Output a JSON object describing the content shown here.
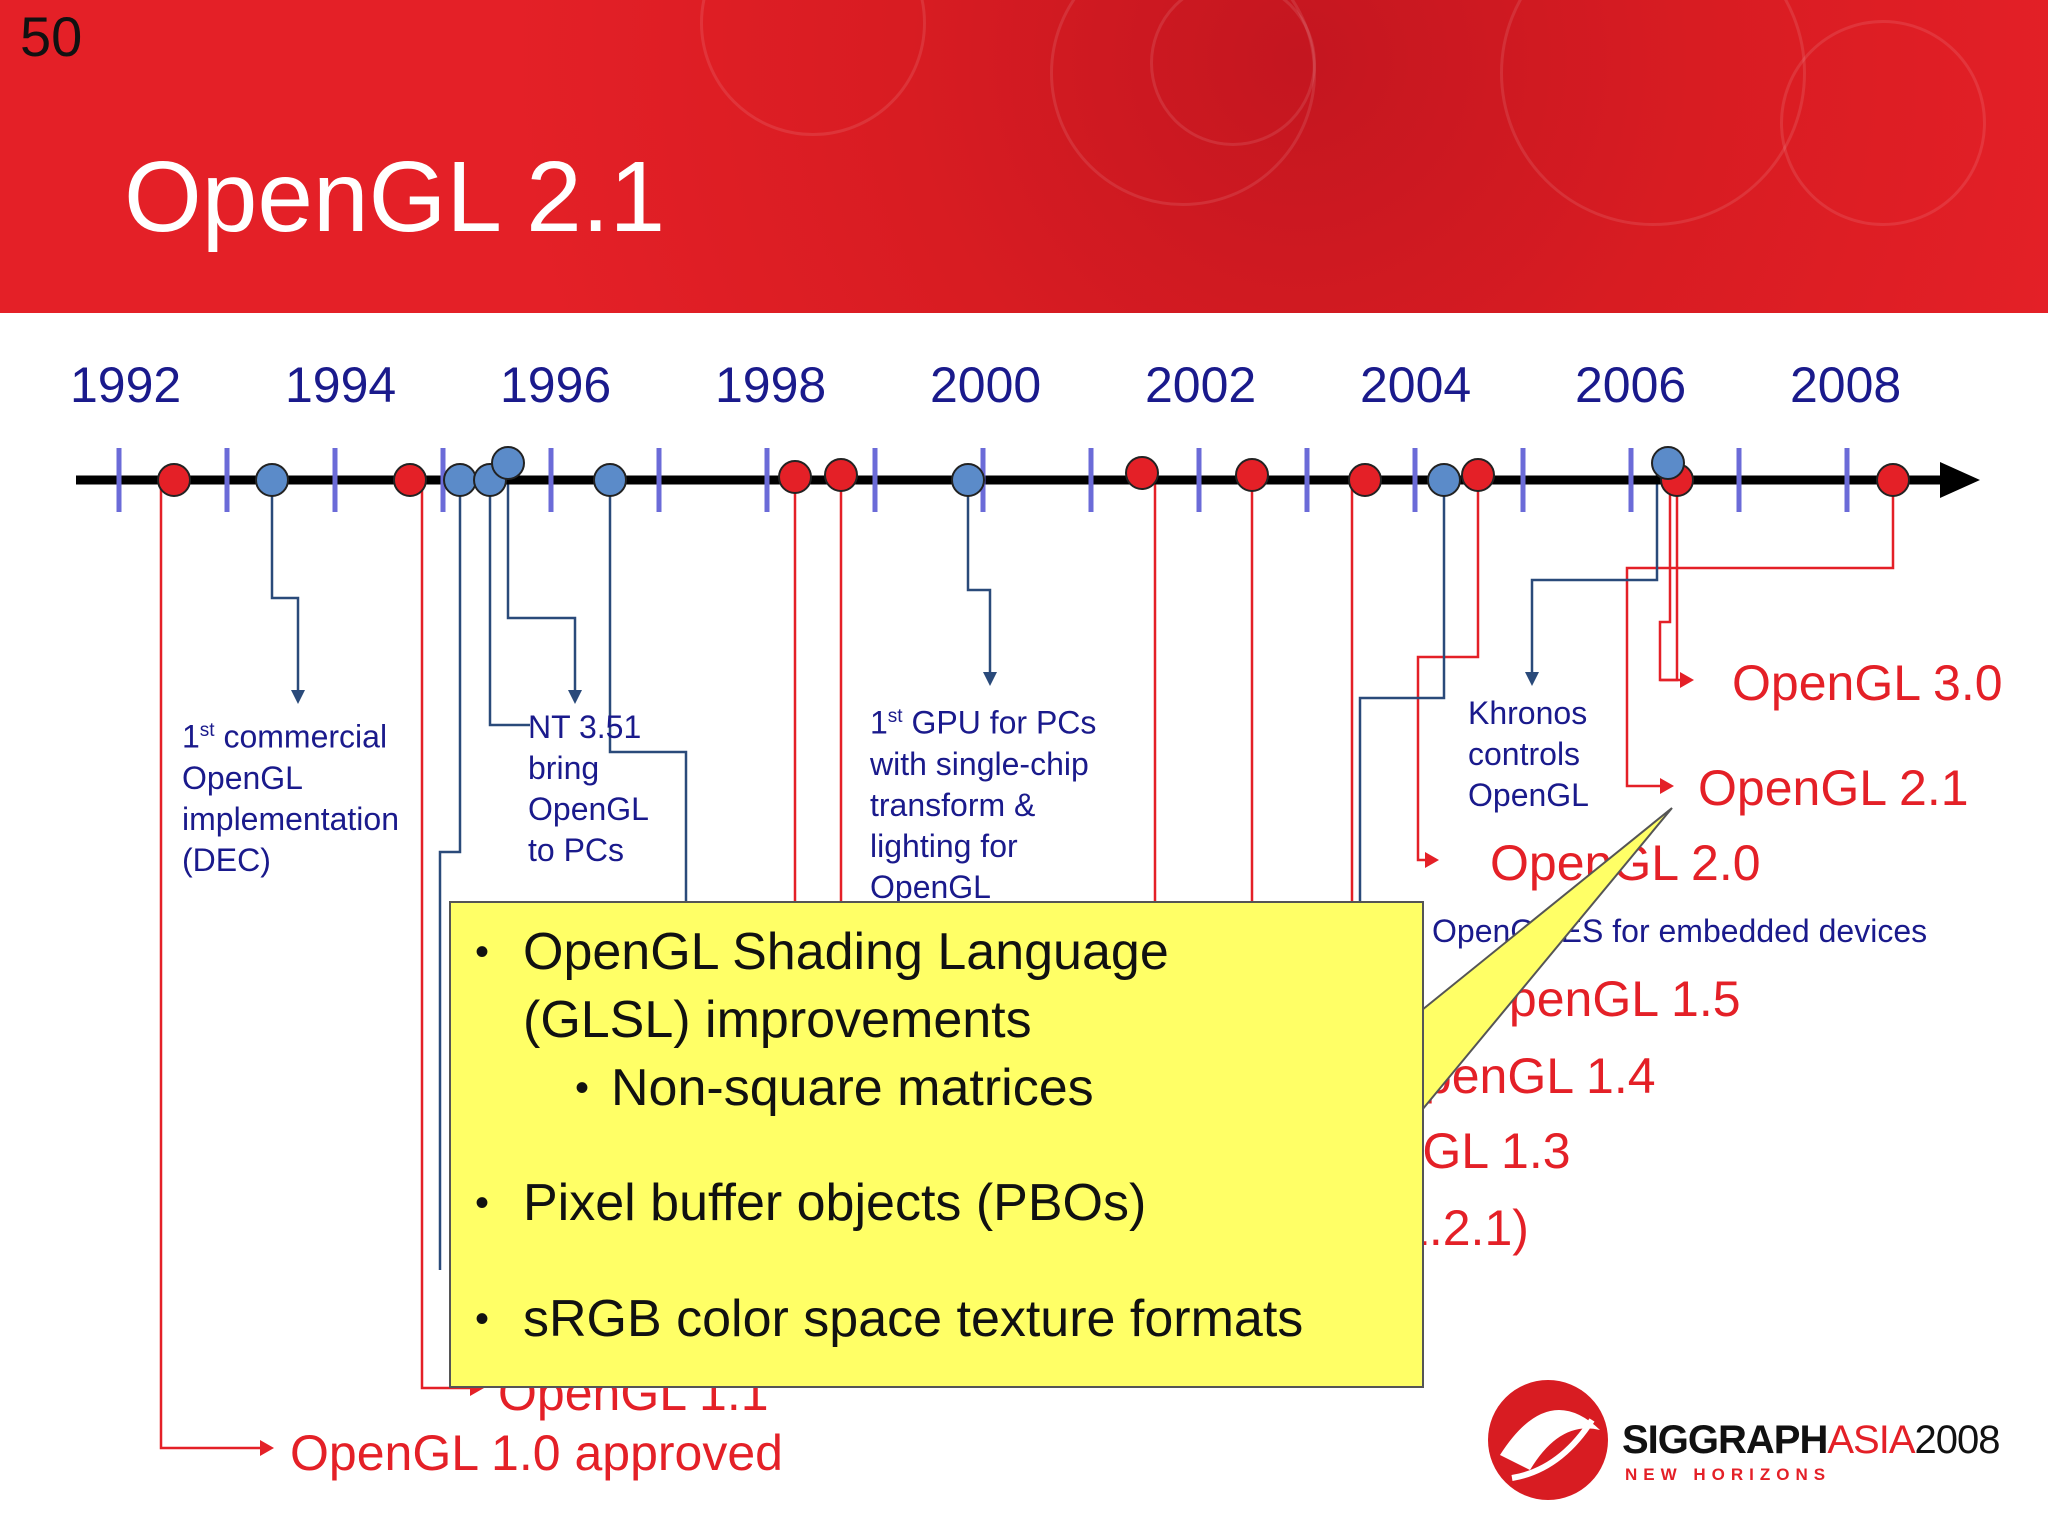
{
  "page_number": "50",
  "title": "OpenGL 2.1",
  "years": [
    "1992",
    "1994",
    "1996",
    "1998",
    "2000",
    "2002",
    "2004",
    "2006",
    "2008"
  ],
  "versions": {
    "v30": "OpenGL 3.0",
    "v21": "OpenGL 2.1",
    "v20": "OpenGL 2.0",
    "v15": "OpenGL 1.5",
    "v14": "OpenGL 1.4",
    "v13": "OpenGL 1.3",
    "v12": "OpenGL 1.2.1)",
    "v11": "OpenGL 1.1",
    "v10": "OpenGL 1.0 approved"
  },
  "notes": {
    "dec": {
      "sup": "st",
      "first": "1",
      "rest": " commercial",
      "l2": "OpenGL",
      "l3": "implementation",
      "l4": "(DEC)"
    },
    "nt": {
      "l1": "NT 3.51",
      "l2": "bring",
      "l3": "OpenGL",
      "l4": "to PCs"
    },
    "gpu": {
      "first": "1",
      "sup": "st",
      "rest": " GPU for PCs",
      "l2": "with single-chip",
      "l3": "transform &",
      "l4": "lighting for",
      "l5": "OpenGL"
    },
    "khronos": {
      "l1": "Khronos",
      "l2": "controls",
      "l3": "OpenGL"
    },
    "es": "OpenGL ES for embedded devices"
  },
  "callout": {
    "b1": "OpenGL Shading Language",
    "b1b": "(GLSL) improvements",
    "sub1": "Non-square matrices",
    "b2": "Pixel buffer objects (PBOs)",
    "b3": "sRGB color space texture formats"
  },
  "logo": {
    "name": "SIGGRAPH",
    "asia": "ASIA",
    "year": "2008",
    "tagline": "NEW HORIZONS"
  },
  "colors": {
    "red": "#e42027",
    "blue_marker": "#5b8bc9",
    "navy": "#1a1a8c",
    "callout": "#ffff66"
  }
}
